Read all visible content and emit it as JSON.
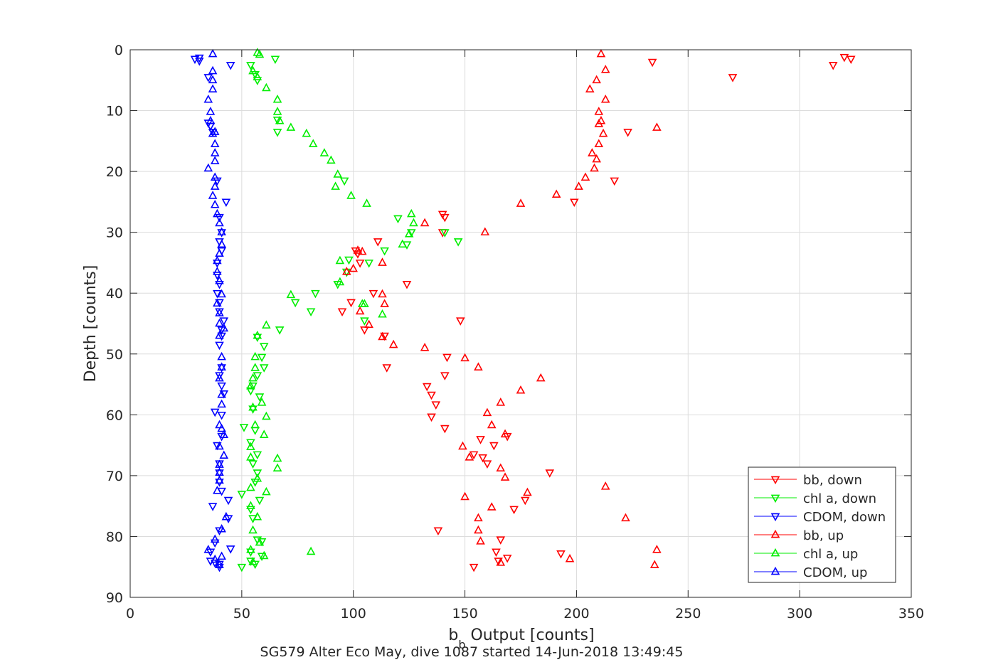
{
  "chart_data": {
    "type": "scatter",
    "title": "",
    "xlabel": "b_b Output [counts]",
    "xlabel_main": "b",
    "xlabel_sub": "b",
    "xlabel_rest": " Output [counts]",
    "ylabel": "Depth [counts]",
    "caption": "SG579 Alter Eco May, dive 1087 started 14-Jun-2018 13:49:45",
    "xlim": [
      0,
      350
    ],
    "ylim": [
      0,
      90
    ],
    "y_reversed": true,
    "grid": true,
    "legend_position": "bottom-right",
    "x_ticks": [
      0,
      50,
      100,
      150,
      200,
      250,
      300,
      350
    ],
    "y_ticks": [
      0,
      10,
      20,
      30,
      40,
      50,
      60,
      70,
      80,
      90
    ],
    "series": [
      {
        "name": "bb, down",
        "color": "#ff0000",
        "marker": "triangle-down",
        "points": [
          [
            320,
            1.2
          ],
          [
            323,
            1.5
          ],
          [
            315,
            2.5
          ],
          [
            270,
            4.5
          ],
          [
            234,
            2
          ],
          [
            223,
            13.5
          ],
          [
            217,
            21.5
          ],
          [
            199,
            25
          ],
          [
            141,
            27.5
          ],
          [
            140,
            27
          ],
          [
            140,
            30
          ],
          [
            111,
            31.5
          ],
          [
            101,
            33
          ],
          [
            102,
            33.5
          ],
          [
            103,
            35
          ],
          [
            97,
            36.5
          ],
          [
            109,
            40
          ],
          [
            124,
            38.5
          ],
          [
            99,
            41.5
          ],
          [
            95,
            43
          ],
          [
            105,
            46
          ],
          [
            114,
            47
          ],
          [
            148,
            44.5
          ],
          [
            115,
            52.2
          ],
          [
            142,
            50.5
          ],
          [
            141,
            53.5
          ],
          [
            133,
            55.3
          ],
          [
            135,
            56.7
          ],
          [
            137,
            58.3
          ],
          [
            135,
            60.3
          ],
          [
            141,
            62.2
          ],
          [
            157,
            64
          ],
          [
            163,
            65
          ],
          [
            169,
            63.5
          ],
          [
            154,
            66.5
          ],
          [
            158,
            67
          ],
          [
            160,
            68
          ],
          [
            188,
            69.5
          ],
          [
            172,
            75.5
          ],
          [
            177,
            74
          ],
          [
            138,
            79
          ],
          [
            166,
            80.5
          ],
          [
            164,
            82.5
          ],
          [
            169,
            83.5
          ],
          [
            165,
            84
          ],
          [
            193,
            82.8
          ],
          [
            154,
            85
          ]
        ]
      },
      {
        "name": "chl a, down",
        "color": "#00ee00",
        "marker": "triangle-down",
        "points": [
          [
            65,
            1.5
          ],
          [
            54,
            2.5
          ],
          [
            56,
            4
          ],
          [
            57,
            5
          ],
          [
            66,
            11.5
          ],
          [
            66,
            13.5
          ],
          [
            96,
            21.5
          ],
          [
            120,
            27.7
          ],
          [
            126,
            30
          ],
          [
            141,
            30
          ],
          [
            147,
            31.5
          ],
          [
            124,
            32
          ],
          [
            114,
            33
          ],
          [
            98,
            34.5
          ],
          [
            107,
            35
          ],
          [
            97,
            36.5
          ],
          [
            93,
            38.5
          ],
          [
            83,
            40
          ],
          [
            74,
            41.5
          ],
          [
            81,
            43
          ],
          [
            105,
            44.5
          ],
          [
            67,
            46
          ],
          [
            57,
            47.2
          ],
          [
            60,
            48.7
          ],
          [
            59,
            50.5
          ],
          [
            60,
            52.2
          ],
          [
            57,
            53.5
          ],
          [
            55,
            55.2
          ],
          [
            54,
            56
          ],
          [
            58,
            57
          ],
          [
            55,
            59
          ],
          [
            51,
            62
          ],
          [
            56,
            62.5
          ],
          [
            54,
            64.5
          ],
          [
            57,
            66.5
          ],
          [
            55,
            68
          ],
          [
            57,
            69.5
          ],
          [
            56,
            71
          ],
          [
            50,
            73
          ],
          [
            58,
            74
          ],
          [
            54,
            75.5
          ],
          [
            55,
            77
          ],
          [
            57,
            80.5
          ],
          [
            59,
            80.8
          ],
          [
            54,
            82.5
          ],
          [
            59,
            83.2
          ],
          [
            54,
            84
          ],
          [
            56,
            84.5
          ],
          [
            50,
            85
          ]
        ]
      },
      {
        "name": "CDOM, down",
        "color": "#0000ff",
        "marker": "triangle-down",
        "points": [
          [
            29,
            1.5
          ],
          [
            31,
            1.3
          ],
          [
            31,
            1.8
          ],
          [
            45,
            2.5
          ],
          [
            35,
            4.5
          ],
          [
            35,
            12
          ],
          [
            37,
            13.5
          ],
          [
            36,
            12.5
          ],
          [
            39,
            21.5
          ],
          [
            43,
            25
          ],
          [
            40,
            27.5
          ],
          [
            41,
            30
          ],
          [
            40,
            31.5
          ],
          [
            41,
            33
          ],
          [
            39,
            35
          ],
          [
            39,
            37
          ],
          [
            40,
            38.5
          ],
          [
            39,
            40
          ],
          [
            40,
            41.5
          ],
          [
            40,
            43
          ],
          [
            42,
            44.5
          ],
          [
            41,
            46
          ],
          [
            41,
            47
          ],
          [
            40,
            48.5
          ],
          [
            41,
            52.2
          ],
          [
            40,
            53.5
          ],
          [
            41,
            55.2
          ],
          [
            42,
            56.5
          ],
          [
            38,
            59.5
          ],
          [
            41,
            60
          ],
          [
            41,
            63.5
          ],
          [
            39,
            65
          ],
          [
            40,
            68
          ],
          [
            40,
            69.5
          ],
          [
            40,
            71
          ],
          [
            41,
            72.5
          ],
          [
            44,
            74
          ],
          [
            37,
            75
          ],
          [
            44,
            77
          ],
          [
            40,
            79
          ],
          [
            38,
            81
          ],
          [
            36,
            82.5
          ],
          [
            45,
            82
          ],
          [
            36,
            84
          ],
          [
            38,
            84.3
          ],
          [
            40,
            84.5
          ],
          [
            40,
            85
          ]
        ]
      },
      {
        "name": "bb, up",
        "color": "#ff0000",
        "marker": "triangle-up",
        "points": [
          [
            211,
            0.7
          ],
          [
            213,
            3.3
          ],
          [
            209,
            5
          ],
          [
            206,
            6.5
          ],
          [
            213,
            8.2
          ],
          [
            210,
            10.2
          ],
          [
            211,
            11.7
          ],
          [
            210,
            12.2
          ],
          [
            236,
            12.8
          ],
          [
            212,
            13.8
          ],
          [
            210,
            15.5
          ],
          [
            207,
            17
          ],
          [
            209,
            18
          ],
          [
            208,
            19.5
          ],
          [
            204,
            21
          ],
          [
            201,
            22.5
          ],
          [
            191,
            23.8
          ],
          [
            175,
            25.3
          ],
          [
            159,
            30
          ],
          [
            132,
            28.5
          ],
          [
            104,
            33.2
          ],
          [
            100,
            36
          ],
          [
            113,
            35
          ],
          [
            113,
            40.2
          ],
          [
            114,
            41.8
          ],
          [
            102,
            33
          ],
          [
            113,
            47.2
          ],
          [
            97,
            36.5
          ],
          [
            103,
            43
          ],
          [
            118,
            48.5
          ],
          [
            107,
            45.2
          ],
          [
            132,
            49
          ],
          [
            150,
            50.7
          ],
          [
            156,
            52.2
          ],
          [
            184,
            54
          ],
          [
            175,
            56
          ],
          [
            166,
            58
          ],
          [
            160,
            59.7
          ],
          [
            162,
            61.7
          ],
          [
            168,
            63.2
          ],
          [
            149,
            65.2
          ],
          [
            152,
            67
          ],
          [
            166,
            68.8
          ],
          [
            168,
            70.3
          ],
          [
            213,
            71.8
          ],
          [
            178,
            72.8
          ],
          [
            150,
            73.5
          ],
          [
            162,
            75.2
          ],
          [
            222,
            77
          ],
          [
            156,
            77
          ],
          [
            156,
            79
          ],
          [
            157,
            80.8
          ],
          [
            236,
            82.2
          ],
          [
            197,
            83.7
          ],
          [
            235,
            84.7
          ],
          [
            166,
            84.3
          ]
        ]
      },
      {
        "name": "chl a, up",
        "color": "#00ee00",
        "marker": "triangle-up",
        "points": [
          [
            57,
            0.5
          ],
          [
            58,
            0.8
          ],
          [
            55,
            3.5
          ],
          [
            57,
            4.5
          ],
          [
            61,
            6.3
          ],
          [
            66,
            8.2
          ],
          [
            66,
            10.2
          ],
          [
            67,
            11.7
          ],
          [
            72,
            12.8
          ],
          [
            79,
            13.8
          ],
          [
            82,
            15.5
          ],
          [
            87,
            17
          ],
          [
            90,
            18.2
          ],
          [
            93,
            20.5
          ],
          [
            92,
            22.5
          ],
          [
            99,
            24
          ],
          [
            106,
            25.3
          ],
          [
            126,
            27
          ],
          [
            127,
            28.5
          ],
          [
            125,
            30.3
          ],
          [
            122,
            32
          ],
          [
            104,
            41.8
          ],
          [
            94,
            34.7
          ],
          [
            94,
            38.2
          ],
          [
            72,
            40.3
          ],
          [
            105,
            41.8
          ],
          [
            113,
            43.5
          ],
          [
            61,
            45.3
          ],
          [
            57,
            47
          ],
          [
            56,
            50.5
          ],
          [
            56,
            52.3
          ],
          [
            55,
            54
          ],
          [
            54,
            55.3
          ],
          [
            59,
            58
          ],
          [
            55,
            58.8
          ],
          [
            61,
            60.3
          ],
          [
            56,
            61.7
          ],
          [
            60,
            63.3
          ],
          [
            54,
            65.3
          ],
          [
            54,
            67
          ],
          [
            66,
            67.2
          ],
          [
            66,
            68.8
          ],
          [
            57,
            70.5
          ],
          [
            54,
            72
          ],
          [
            61,
            72.7
          ],
          [
            54,
            75
          ],
          [
            57,
            76.8
          ],
          [
            55,
            79
          ],
          [
            58,
            81
          ],
          [
            81,
            82.5
          ],
          [
            54,
            82.2
          ],
          [
            60,
            83.2
          ],
          [
            55,
            84.2
          ]
        ]
      },
      {
        "name": "CDOM, up",
        "color": "#0000ff",
        "marker": "triangle-up",
        "points": [
          [
            37,
            0.7
          ],
          [
            37,
            3.5
          ],
          [
            37,
            5
          ],
          [
            37,
            6.5
          ],
          [
            35,
            8.2
          ],
          [
            36,
            10.2
          ],
          [
            36,
            11.7
          ],
          [
            38,
            13.5
          ],
          [
            37,
            13.8
          ],
          [
            38,
            15.5
          ],
          [
            38,
            17
          ],
          [
            38,
            18.3
          ],
          [
            35,
            19.5
          ],
          [
            38,
            21
          ],
          [
            38,
            22.5
          ],
          [
            37,
            24
          ],
          [
            38,
            25.5
          ],
          [
            39,
            27
          ],
          [
            40,
            28.5
          ],
          [
            41,
            30
          ],
          [
            41,
            32
          ],
          [
            40,
            33.5
          ],
          [
            39,
            34.7
          ],
          [
            39,
            36.5
          ],
          [
            40,
            38
          ],
          [
            41,
            40.2
          ],
          [
            39,
            41.7
          ],
          [
            40,
            43.3
          ],
          [
            40,
            45
          ],
          [
            42,
            45.8
          ],
          [
            40,
            47
          ],
          [
            41,
            50.5
          ],
          [
            41,
            52.2
          ],
          [
            40,
            54
          ],
          [
            41,
            56.7
          ],
          [
            41,
            58.3
          ],
          [
            40,
            61.7
          ],
          [
            41,
            62.3
          ],
          [
            42,
            63.3
          ],
          [
            40,
            65.2
          ],
          [
            42,
            66.7
          ],
          [
            40,
            68.2
          ],
          [
            40,
            69.5
          ],
          [
            40,
            70.8
          ],
          [
            39,
            72.5
          ],
          [
            43,
            76.8
          ],
          [
            41,
            78.8
          ],
          [
            38,
            80.5
          ],
          [
            35,
            82.2
          ],
          [
            41,
            83.3
          ],
          [
            38,
            83.8
          ],
          [
            40,
            84.7
          ]
        ]
      }
    ]
  }
}
